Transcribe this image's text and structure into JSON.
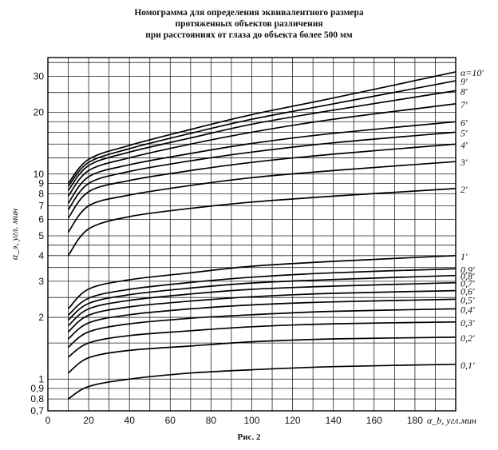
{
  "title_lines": [
    "Номограмма для определения эквивалентного размера",
    "протяженных объектов различения",
    "при расстояниях от глаза до объекта более 500 мм"
  ],
  "caption": "Рис. 2",
  "chart_data": {
    "type": "line",
    "title": "Номограмма для определения эквивалентного размера протяженных объектов различения при расстояниях от глаза до объекта более 500 мм",
    "xlabel": "α_b, угл.мин",
    "ylabel": "α_э, угл. мин",
    "xlim": [
      0,
      200
    ],
    "ylim": [
      0.7,
      37
    ],
    "yscale": "log",
    "x_ticks": [
      0,
      20,
      40,
      60,
      80,
      100,
      120,
      140,
      160,
      180
    ],
    "x_tick_labels": [
      "0",
      "20",
      "40",
      "60",
      "80",
      "100",
      "120",
      "140",
      "160",
      "180"
    ],
    "y_ticks": [
      0.7,
      0.8,
      0.9,
      1,
      2,
      3,
      4,
      5,
      6,
      7,
      8,
      9,
      10,
      20,
      30
    ],
    "y_tick_labels": [
      "0,7",
      "0,8",
      "0,9",
      "1",
      "2",
      "3",
      "4",
      "5",
      "6",
      "7",
      "8",
      "9",
      "10",
      "20",
      "30"
    ],
    "grid": true,
    "x": [
      10,
      20,
      40,
      70,
      100,
      140,
      200
    ],
    "series": [
      {
        "name": "0,1′",
        "values": [
          0.8,
          0.92,
          1.0,
          1.07,
          1.11,
          1.15,
          1.18
        ]
      },
      {
        "name": "0,2′",
        "values": [
          1.07,
          1.27,
          1.38,
          1.45,
          1.52,
          1.57,
          1.6
        ]
      },
      {
        "name": "0,3′",
        "values": [
          1.28,
          1.5,
          1.63,
          1.72,
          1.8,
          1.86,
          1.9
        ]
      },
      {
        "name": "0,4′",
        "values": [
          1.43,
          1.7,
          1.86,
          1.98,
          2.06,
          2.14,
          2.2
        ]
      },
      {
        "name": "0,5′",
        "values": [
          1.57,
          1.88,
          2.06,
          2.2,
          2.3,
          2.38,
          2.45
        ]
      },
      {
        "name": "0,6′",
        "values": [
          1.7,
          2.05,
          2.25,
          2.4,
          2.52,
          2.62,
          2.7
        ]
      },
      {
        "name": "0,7′",
        "values": [
          1.82,
          2.2,
          2.42,
          2.6,
          2.74,
          2.84,
          2.95
        ]
      },
      {
        "name": "0,8′",
        "values": [
          1.94,
          2.34,
          2.58,
          2.78,
          2.94,
          3.06,
          3.2
        ]
      },
      {
        "name": "0,9′",
        "values": [
          2.05,
          2.48,
          2.74,
          2.96,
          3.14,
          3.3,
          3.45
        ]
      },
      {
        "name": "1′",
        "values": [
          2.2,
          2.75,
          3.05,
          3.3,
          3.55,
          3.75,
          4.0
        ]
      },
      {
        "name": "2′",
        "values": [
          4.0,
          5.4,
          6.2,
          6.8,
          7.3,
          7.8,
          8.5
        ]
      },
      {
        "name": "3′",
        "values": [
          5.2,
          7.0,
          7.9,
          8.8,
          9.6,
          10.4,
          11.5
        ]
      },
      {
        "name": "4′",
        "values": [
          6.1,
          8.2,
          9.3,
          10.4,
          11.4,
          12.5,
          14.0
        ]
      },
      {
        "name": "5′",
        "values": [
          6.7,
          9.0,
          10.3,
          11.6,
          12.8,
          14.2,
          16.0
        ]
      },
      {
        "name": "6′",
        "values": [
          7.2,
          9.7,
          11.1,
          12.6,
          14.1,
          15.8,
          18.0
        ]
      },
      {
        "name": "7′",
        "values": [
          7.8,
          10.4,
          12.0,
          14.0,
          16.0,
          18.5,
          22.0
        ]
      },
      {
        "name": "8′",
        "values": [
          8.3,
          11.0,
          12.8,
          15.0,
          17.5,
          20.5,
          25.5
        ]
      },
      {
        "name": "9′",
        "values": [
          8.7,
          11.4,
          13.3,
          15.8,
          18.5,
          22.0,
          28.5
        ]
      },
      {
        "name": "α=10′",
        "values": [
          9.0,
          11.8,
          13.8,
          16.5,
          19.5,
          23.5,
          31.5
        ]
      }
    ]
  }
}
